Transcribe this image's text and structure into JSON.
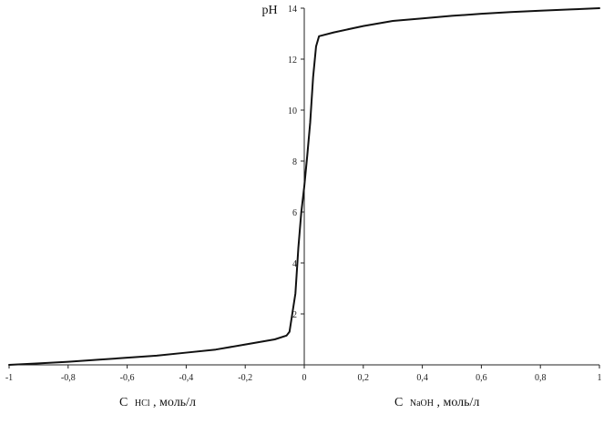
{
  "chart_data": {
    "type": "line",
    "title": "",
    "ylabel": "pH",
    "xlabel_left": {
      "main": "C",
      "sub": "HCl",
      "unit": ", моль/л"
    },
    "xlabel_right": {
      "main": "C",
      "sub": "NaOH",
      "unit": ", моль/л"
    },
    "xlim": [
      -1,
      1
    ],
    "ylim": [
      0,
      14
    ],
    "x_ticks": [
      -1,
      -0.8,
      -0.6,
      -0.4,
      -0.2,
      0,
      0.2,
      0.4,
      0.6,
      0.8,
      1
    ],
    "x_tick_labels": [
      "-1",
      "-0,8",
      "-0,6",
      "-0,4",
      "-0,2",
      "0",
      "0,2",
      "0,4",
      "0,6",
      "0,8",
      "1"
    ],
    "y_ticks": [
      0,
      2,
      4,
      6,
      8,
      10,
      12,
      14
    ],
    "y_tick_labels": [
      "",
      "2",
      "4",
      "6",
      "8",
      "10",
      "12",
      "14"
    ],
    "grid": false,
    "series": [
      {
        "color": "#111111",
        "x": [
          -1,
          -0.9,
          -0.8,
          -0.7,
          -0.6,
          -0.5,
          -0.4,
          -0.3,
          -0.2,
          -0.1,
          -0.06,
          -0.05,
          -0.03,
          -0.02,
          -0.01,
          0,
          0.01,
          0.02,
          0.03,
          0.04,
          0.05,
          0.1,
          0.2,
          0.3,
          0.4,
          0.5,
          0.6,
          0.7,
          0.8,
          0.9,
          1
        ],
        "y": [
          0,
          0.06,
          0.12,
          0.2,
          0.28,
          0.36,
          0.48,
          0.6,
          0.8,
          1.0,
          1.15,
          1.3,
          2.8,
          4.6,
          6.0,
          7.0,
          8.2,
          9.5,
          11.3,
          12.5,
          12.9,
          13.05,
          13.3,
          13.5,
          13.6,
          13.7,
          13.78,
          13.85,
          13.9,
          13.95,
          14.0
        ]
      }
    ]
  }
}
